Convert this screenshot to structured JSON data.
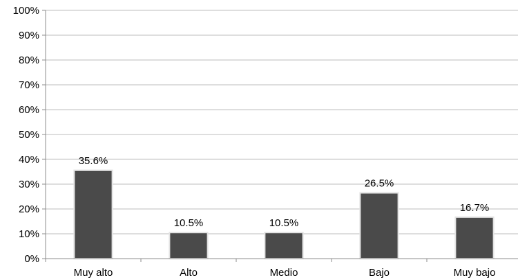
{
  "chart_data": {
    "type": "bar",
    "title": "",
    "xlabel": "",
    "ylabel": "",
    "categories": [
      "Muy alto",
      "Alto",
      "Medio",
      "Bajo",
      "Muy bajo"
    ],
    "values": [
      35.6,
      10.5,
      10.5,
      26.5,
      16.7
    ],
    "value_labels": [
      "35.6%",
      "10.5%",
      "10.5%",
      "26.5%",
      "16.7%"
    ],
    "ylim": [
      0,
      100
    ],
    "yticks": [
      0,
      10,
      20,
      30,
      40,
      50,
      60,
      70,
      80,
      90,
      100
    ],
    "ytick_labels": [
      "0%",
      "10%",
      "20%",
      "30%",
      "40%",
      "50%",
      "60%",
      "70%",
      "80%",
      "90%",
      "100%"
    ],
    "grid": true,
    "legend": "none",
    "bar_color": "#4a4a4a"
  }
}
